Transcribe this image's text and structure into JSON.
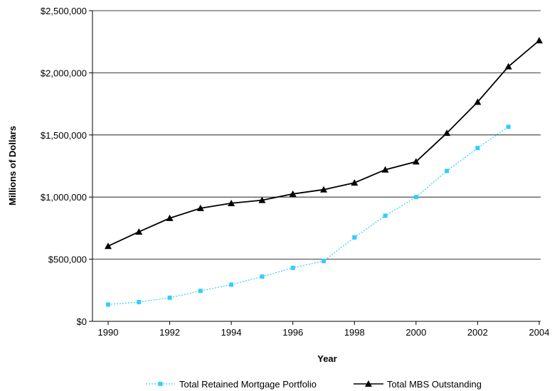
{
  "chart_data": {
    "type": "line",
    "title": "",
    "xlabel": "Year",
    "ylabel": "Millions of Dollars",
    "x_ticks": [
      "1990",
      "1992",
      "1994",
      "1996",
      "1998",
      "2000",
      "2002",
      "2004"
    ],
    "y_ticks": [
      "$0",
      "$500,000",
      "$1,000,000",
      "$1,500,000",
      "$2,000,000",
      "$2,500,000"
    ],
    "xlim": [
      1990,
      2004
    ],
    "ylim": [
      0,
      2500000
    ],
    "grid": "horizontal",
    "legend_position": "bottom",
    "series": [
      {
        "name": "Total Retained Mortgage Portfolio",
        "color": "#33CCFF",
        "line_style": "dotted",
        "marker": "square",
        "x": [
          1990,
          1991,
          1992,
          1993,
          1994,
          1995,
          1996,
          1997,
          1998,
          1999,
          2000,
          2001,
          2002,
          2003
        ],
        "y": [
          135000,
          155000,
          190000,
          245000,
          295000,
          360000,
          430000,
          485000,
          675000,
          850000,
          1000000,
          1210000,
          1395000,
          1565000
        ]
      },
      {
        "name": "Total MBS Outstanding",
        "color": "#000000",
        "line_style": "solid",
        "marker": "triangle",
        "x": [
          1990,
          1991,
          1992,
          1993,
          1994,
          1995,
          1996,
          1997,
          1998,
          1999,
          2000,
          2001,
          2002,
          2003,
          2004
        ],
        "y": [
          605000,
          720000,
          830000,
          910000,
          950000,
          975000,
          1025000,
          1060000,
          1115000,
          1220000,
          1285000,
          1515000,
          1765000,
          2050000,
          2260000
        ]
      }
    ]
  }
}
